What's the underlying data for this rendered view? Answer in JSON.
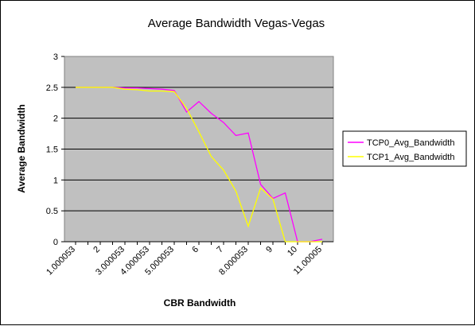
{
  "chart_data": {
    "type": "line",
    "title": "Average Bandwidth Vegas-Vegas",
    "xlabel": "CBR Bandwidth",
    "ylabel": "Average Bandwidth",
    "ylim": [
      0,
      3
    ],
    "yticks": [
      "0",
      "0.5",
      "1",
      "1.5",
      "2",
      "2.5",
      "3"
    ],
    "ytick_values": [
      0,
      0.5,
      1,
      1.5,
      2,
      2.5,
      3
    ],
    "x_tick_labels": [
      "1.000053",
      "2",
      "3.000053",
      "4.000053",
      "5.000053",
      "6",
      "7",
      "8.000053",
      "9",
      "10",
      "11.00005"
    ],
    "x": [
      1,
      1.5,
      2,
      2.5,
      3,
      3.5,
      4,
      4.5,
      5,
      5.5,
      6,
      6.5,
      7,
      7.5,
      8,
      8.5,
      9,
      9.5,
      10,
      10.5,
      11
    ],
    "grid": true,
    "legend": "right",
    "plot_background": "#C0C0C0",
    "series": [
      {
        "name": "TCP0_Avg_Bandwidth",
        "color": "#FF00FF",
        "values": [
          2.5,
          2.5,
          2.5,
          2.5,
          2.49,
          2.49,
          2.48,
          2.47,
          2.45,
          2.1,
          2.27,
          2.08,
          1.93,
          1.72,
          1.76,
          0.93,
          0.7,
          0.79,
          0.0,
          0.0,
          0.04
        ]
      },
      {
        "name": "TCP1_Avg_Bandwidth",
        "color": "#FFFF00",
        "values": [
          2.5,
          2.5,
          2.5,
          2.5,
          2.47,
          2.46,
          2.44,
          2.44,
          2.43,
          2.16,
          1.78,
          1.38,
          1.16,
          0.82,
          0.25,
          0.87,
          0.69,
          0.0,
          0.0,
          0.0,
          0.0
        ]
      }
    ]
  }
}
